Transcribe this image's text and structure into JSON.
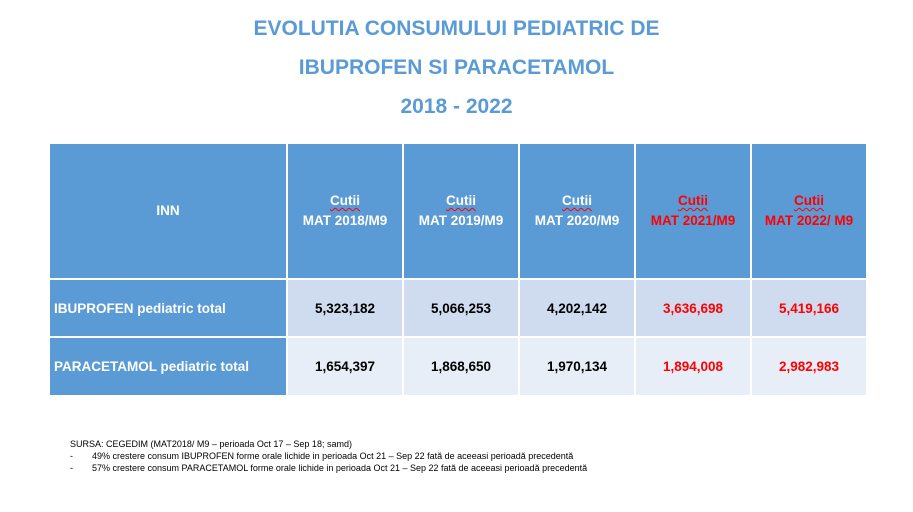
{
  "title": {
    "line1": "EVOLUTIA CONSUMULUI PEDIATRIC DE",
    "line2": "IBUPROFEN SI PARACETAMOL",
    "line3": "2018 - 2022"
  },
  "table": {
    "inn_header": "INN",
    "columns": [
      {
        "top": "Cutii",
        "bottom": "MAT 2018/M9"
      },
      {
        "top": "Cutii",
        "bottom": "MAT 2019/M9"
      },
      {
        "top": "Cutii",
        "bottom": "MAT 2020/M9"
      },
      {
        "top": "Cutii",
        "bottom": "MAT 2021/M9"
      },
      {
        "top": "Cutii",
        "bottom": "MAT 2022/ M9"
      }
    ],
    "rows": [
      {
        "label": "IBUPROFEN pediatric total",
        "values": [
          "5,323,182",
          "5,066,253",
          "4,202,142",
          "3,636,698",
          "5,419,166"
        ]
      },
      {
        "label": "PARACETAMOL pediatric total",
        "values": [
          "1,654,397",
          "1,868,650",
          "1,970,134",
          "1,894,008",
          "2,982,983"
        ]
      }
    ],
    "colors": {
      "header_bg": "#5b9bd5",
      "row1_bg": "#cfdbee",
      "row2_bg": "#e8eef8",
      "highlight": "#ff0000"
    }
  },
  "notes": {
    "source": "SURSA: CEGEDIM (MAT2018/ M9 – perioada Oct 17 – Sep 18; samd)",
    "bullet1": "49% crestere consum IBUPROFEN forme orale lichide in perioada Oct 21 – Sep 22 fată de aceeasi perioadă precedentă",
    "bullet2": "57% crestere consum PARACETAMOL forme orale lichide in perioada Oct 21 – Sep 22 fată de aceeasi perioadă precedentă",
    "dash": "-"
  }
}
